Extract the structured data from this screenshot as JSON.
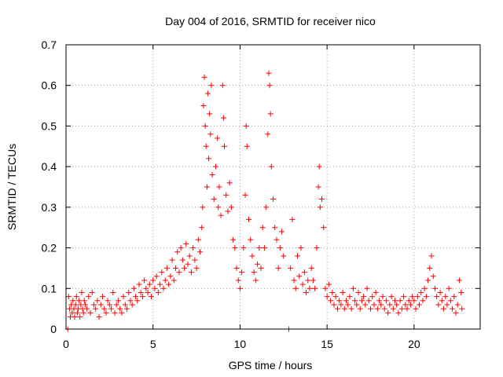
{
  "chart_data": {
    "type": "scatter",
    "title": "Day 004 of 2016, SRMTID for receiver nico",
    "xlabel": "GPS time / hours",
    "ylabel": "SRMTID / TECUs",
    "xlim": [
      0,
      23.8
    ],
    "ylim": [
      0,
      0.7
    ],
    "xticks": [
      0,
      5,
      10,
      15,
      20
    ],
    "yticks": [
      0,
      0.1,
      0.2,
      0.3,
      0.4,
      0.5,
      0.6,
      0.7
    ],
    "xtick_labels": [
      "0",
      "5",
      "10",
      "15",
      "20"
    ],
    "ytick_labels": [
      "0",
      "0.1",
      "0.2",
      "0.3",
      "0.4",
      "0.5",
      "0.6",
      "0.7"
    ],
    "grid": true,
    "marker": "+",
    "color": "#ff0000",
    "series": [
      {
        "name": "SRMTID",
        "points": [
          [
            0.1,
            0.0
          ],
          [
            0.15,
            0.08
          ],
          [
            0.2,
            0.05
          ],
          [
            0.25,
            0.03
          ],
          [
            0.3,
            0.06
          ],
          [
            0.35,
            0.04
          ],
          [
            0.4,
            0.07
          ],
          [
            0.45,
            0.05
          ],
          [
            0.5,
            0.03
          ],
          [
            0.55,
            0.06
          ],
          [
            0.6,
            0.08
          ],
          [
            0.65,
            0.04
          ],
          [
            0.7,
            0.05
          ],
          [
            0.75,
            0.07
          ],
          [
            0.8,
            0.03
          ],
          [
            0.85,
            0.06
          ],
          [
            0.9,
            0.09
          ],
          [
            0.95,
            0.05
          ],
          [
            1.0,
            0.04
          ],
          [
            1.05,
            0.07
          ],
          [
            1.1,
            0.06
          ],
          [
            1.2,
            0.05
          ],
          [
            1.3,
            0.08
          ],
          [
            1.4,
            0.04
          ],
          [
            1.5,
            0.09
          ],
          [
            1.6,
            0.06
          ],
          [
            1.7,
            0.05
          ],
          [
            1.8,
            0.07
          ],
          [
            1.9,
            0.03
          ],
          [
            2.0,
            0.06
          ],
          [
            2.1,
            0.08
          ],
          [
            2.2,
            0.05
          ],
          [
            2.3,
            0.04
          ],
          [
            2.4,
            0.07
          ],
          [
            2.5,
            0.06
          ],
          [
            2.6,
            0.05
          ],
          [
            2.7,
            0.09
          ],
          [
            2.8,
            0.04
          ],
          [
            2.9,
            0.06
          ],
          [
            3.0,
            0.07
          ],
          [
            3.1,
            0.05
          ],
          [
            3.2,
            0.04
          ],
          [
            3.3,
            0.08
          ],
          [
            3.4,
            0.06
          ],
          [
            3.5,
            0.05
          ],
          [
            3.6,
            0.09
          ],
          [
            3.7,
            0.07
          ],
          [
            3.8,
            0.06
          ],
          [
            3.9,
            0.1
          ],
          [
            4.0,
            0.08
          ],
          [
            4.1,
            0.07
          ],
          [
            4.2,
            0.11
          ],
          [
            4.3,
            0.09
          ],
          [
            4.4,
            0.08
          ],
          [
            4.5,
            0.12
          ],
          [
            4.6,
            0.1
          ],
          [
            4.7,
            0.09
          ],
          [
            4.8,
            0.11
          ],
          [
            4.9,
            0.08
          ],
          [
            5.0,
            0.12
          ],
          [
            5.1,
            0.1
          ],
          [
            5.2,
            0.13
          ],
          [
            5.3,
            0.09
          ],
          [
            5.4,
            0.11
          ],
          [
            5.5,
            0.14
          ],
          [
            5.6,
            0.1
          ],
          [
            5.7,
            0.12
          ],
          [
            5.8,
            0.15
          ],
          [
            5.9,
            0.11
          ],
          [
            6.0,
            0.13
          ],
          [
            6.1,
            0.17
          ],
          [
            6.2,
            0.12
          ],
          [
            6.3,
            0.15
          ],
          [
            6.4,
            0.19
          ],
          [
            6.5,
            0.14
          ],
          [
            6.6,
            0.2
          ],
          [
            6.7,
            0.17
          ],
          [
            6.8,
            0.15
          ],
          [
            6.9,
            0.21
          ],
          [
            7.0,
            0.16
          ],
          [
            7.1,
            0.18
          ],
          [
            7.2,
            0.14
          ],
          [
            7.3,
            0.2
          ],
          [
            7.4,
            0.17
          ],
          [
            7.5,
            0.15
          ],
          [
            7.6,
            0.22
          ],
          [
            7.7,
            0.19
          ],
          [
            7.8,
            0.25
          ],
          [
            7.85,
            0.3
          ],
          [
            7.9,
            0.55
          ],
          [
            7.95,
            0.62
          ],
          [
            8.0,
            0.5
          ],
          [
            8.05,
            0.45
          ],
          [
            8.1,
            0.35
          ],
          [
            8.15,
            0.58
          ],
          [
            8.2,
            0.42
          ],
          [
            8.25,
            0.53
          ],
          [
            8.3,
            0.48
          ],
          [
            8.35,
            0.6
          ],
          [
            8.4,
            0.38
          ],
          [
            8.5,
            0.32
          ],
          [
            8.6,
            0.4
          ],
          [
            8.7,
            0.47
          ],
          [
            8.75,
            0.3
          ],
          [
            8.8,
            0.35
          ],
          [
            8.9,
            0.28
          ],
          [
            9.0,
            0.6
          ],
          [
            9.05,
            0.52
          ],
          [
            9.1,
            0.45
          ],
          [
            9.2,
            0.33
          ],
          [
            9.3,
            0.29
          ],
          [
            9.4,
            0.36
          ],
          [
            9.5,
            0.3
          ],
          [
            9.6,
            0.22
          ],
          [
            9.7,
            0.2
          ],
          [
            9.8,
            0.15
          ],
          [
            9.9,
            0.12
          ],
          [
            10.0,
            0.1
          ],
          [
            10.1,
            0.14
          ],
          [
            10.2,
            0.2
          ],
          [
            10.3,
            0.33
          ],
          [
            10.35,
            0.5
          ],
          [
            10.4,
            0.45
          ],
          [
            10.5,
            0.27
          ],
          [
            10.6,
            0.22
          ],
          [
            10.7,
            0.18
          ],
          [
            10.8,
            0.14
          ],
          [
            10.9,
            0.12
          ],
          [
            11.0,
            0.16
          ],
          [
            11.1,
            0.2
          ],
          [
            11.2,
            0.15
          ],
          [
            11.3,
            0.25
          ],
          [
            11.4,
            0.2
          ],
          [
            11.5,
            0.3
          ],
          [
            11.6,
            0.48
          ],
          [
            11.65,
            0.63
          ],
          [
            11.7,
            0.6
          ],
          [
            11.75,
            0.53
          ],
          [
            11.8,
            0.4
          ],
          [
            11.9,
            0.32
          ],
          [
            12.0,
            0.25
          ],
          [
            12.1,
            0.22
          ],
          [
            12.2,
            0.15
          ],
          [
            12.3,
            0.2
          ],
          [
            12.4,
            0.24
          ],
          [
            12.5,
            0.18
          ],
          [
            12.8,
            0.0
          ],
          [
            12.9,
            0.15
          ],
          [
            13.0,
            0.27
          ],
          [
            13.1,
            0.12
          ],
          [
            13.2,
            0.1
          ],
          [
            13.3,
            0.18
          ],
          [
            13.4,
            0.13
          ],
          [
            13.5,
            0.2
          ],
          [
            13.6,
            0.11
          ],
          [
            13.7,
            0.14
          ],
          [
            13.8,
            0.09
          ],
          [
            13.9,
            0.12
          ],
          [
            14.0,
            0.1
          ],
          [
            14.1,
            0.15
          ],
          [
            14.2,
            0.12
          ],
          [
            14.3,
            0.1
          ],
          [
            14.4,
            0.2
          ],
          [
            14.5,
            0.35
          ],
          [
            14.55,
            0.4
          ],
          [
            14.6,
            0.3
          ],
          [
            14.7,
            0.32
          ],
          [
            14.8,
            0.25
          ],
          [
            14.9,
            0.1
          ],
          [
            15.0,
            0.08
          ],
          [
            15.1,
            0.11
          ],
          [
            15.2,
            0.07
          ],
          [
            15.3,
            0.09
          ],
          [
            15.4,
            0.06
          ],
          [
            15.5,
            0.08
          ],
          [
            15.6,
            0.05
          ],
          [
            15.7,
            0.07
          ],
          [
            15.8,
            0.06
          ],
          [
            15.9,
            0.09
          ],
          [
            16.0,
            0.05
          ],
          [
            16.1,
            0.07
          ],
          [
            16.2,
            0.06
          ],
          [
            16.3,
            0.08
          ],
          [
            16.4,
            0.05
          ],
          [
            16.5,
            0.1
          ],
          [
            16.6,
            0.07
          ],
          [
            16.7,
            0.06
          ],
          [
            16.8,
            0.09
          ],
          [
            16.9,
            0.05
          ],
          [
            17.0,
            0.07
          ],
          [
            17.1,
            0.08
          ],
          [
            17.2,
            0.06
          ],
          [
            17.3,
            0.1
          ],
          [
            17.4,
            0.07
          ],
          [
            17.5,
            0.05
          ],
          [
            17.6,
            0.08
          ],
          [
            17.7,
            0.06
          ],
          [
            17.8,
            0.09
          ],
          [
            17.9,
            0.05
          ],
          [
            18.0,
            0.07
          ],
          [
            18.1,
            0.06
          ],
          [
            18.2,
            0.08
          ],
          [
            18.3,
            0.05
          ],
          [
            18.4,
            0.07
          ],
          [
            18.5,
            0.04
          ],
          [
            18.6,
            0.06
          ],
          [
            18.7,
            0.08
          ],
          [
            18.8,
            0.05
          ],
          [
            18.9,
            0.07
          ],
          [
            19.0,
            0.06
          ],
          [
            19.1,
            0.04
          ],
          [
            19.2,
            0.07
          ],
          [
            19.3,
            0.05
          ],
          [
            19.4,
            0.08
          ],
          [
            19.5,
            0.06
          ],
          [
            19.6,
            0.05
          ],
          [
            19.7,
            0.07
          ],
          [
            19.8,
            0.06
          ],
          [
            19.9,
            0.08
          ],
          [
            20.0,
            0.07
          ],
          [
            20.1,
            0.05
          ],
          [
            20.2,
            0.08
          ],
          [
            20.3,
            0.06
          ],
          [
            20.4,
            0.09
          ],
          [
            20.5,
            0.07
          ],
          [
            20.6,
            0.1
          ],
          [
            20.7,
            0.08
          ],
          [
            20.8,
            0.12
          ],
          [
            20.9,
            0.15
          ],
          [
            21.0,
            0.18
          ],
          [
            21.1,
            0.13
          ],
          [
            21.2,
            0.1
          ],
          [
            21.3,
            0.08
          ],
          [
            21.4,
            0.06
          ],
          [
            21.5,
            0.09
          ],
          [
            21.6,
            0.07
          ],
          [
            21.7,
            0.05
          ],
          [
            21.8,
            0.08
          ],
          [
            21.9,
            0.06
          ],
          [
            22.0,
            0.1
          ],
          [
            22.1,
            0.07
          ],
          [
            22.2,
            0.05
          ],
          [
            22.3,
            0.08
          ],
          [
            22.4,
            0.04
          ],
          [
            22.5,
            0.06
          ],
          [
            22.6,
            0.12
          ],
          [
            22.7,
            0.09
          ],
          [
            22.75,
            0.05
          ]
        ]
      }
    ]
  }
}
